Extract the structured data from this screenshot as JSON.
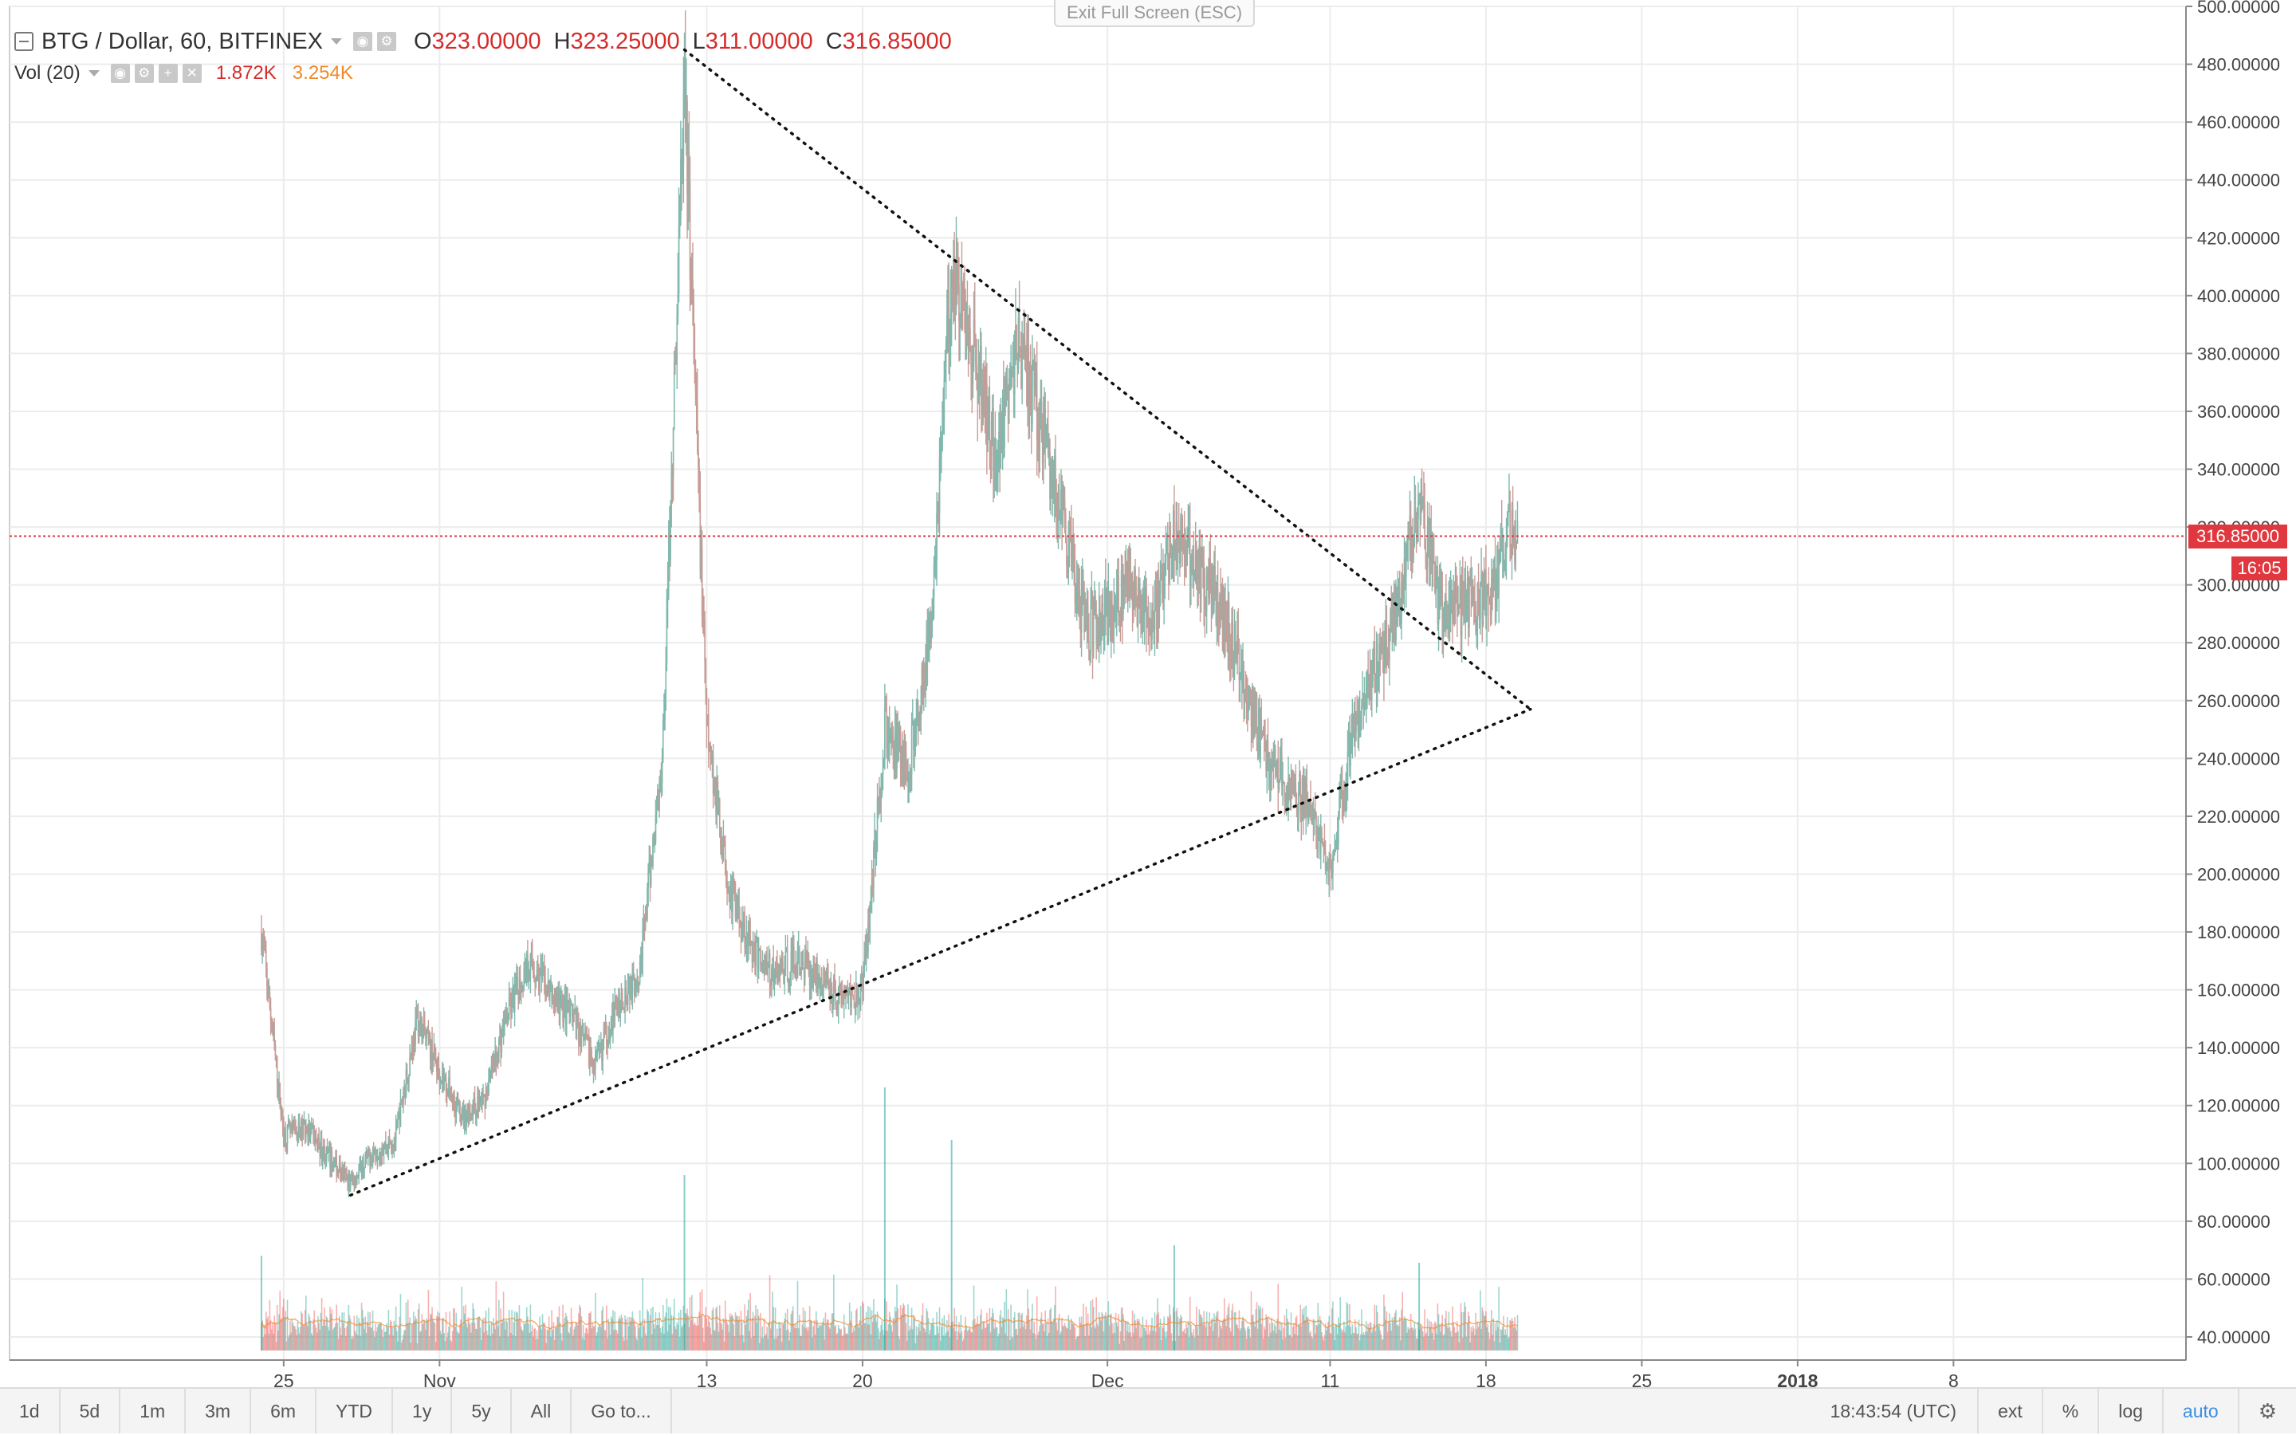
{
  "legend": {
    "symbol": "BTG / Dollar, 60, BITFINEX",
    "open_key": "O",
    "open": "323.00000",
    "high_key": "H",
    "high": "323.25000",
    "low_key": "L",
    "low": "311.00000",
    "close_key": "C",
    "close": "316.85000"
  },
  "volume_legend": {
    "label": "Vol (20)",
    "value": "1.872K",
    "ma": "3.254K"
  },
  "exit_fullscreen": "Exit Full Screen (ESC)",
  "price_badge": "316.85000",
  "countdown_badge": "16:05",
  "toolbar": {
    "ranges": [
      "1d",
      "5d",
      "1m",
      "3m",
      "6m",
      "YTD",
      "1y",
      "5y",
      "All"
    ],
    "goto": "Go to...",
    "clock": "18:43:54 (UTC)",
    "ext": "ext",
    "percent": "%",
    "log": "log",
    "auto": "auto"
  },
  "colors": {
    "up": "#26a69a",
    "down": "#ef5350",
    "last_price": "#e0383e",
    "volume_ma": "#f08a28"
  },
  "chart_data": {
    "type": "candlestick",
    "title": "BTG / Dollar, 60, BITFINEX",
    "interval": "60",
    "exchange": "BITFINEX",
    "y_axis": {
      "side": "right",
      "ylim": [
        32,
        500
      ],
      "ticks": [
        "40.00000",
        "60.00000",
        "80.00000",
        "100.00000",
        "120.00000",
        "140.00000",
        "160.00000",
        "180.00000",
        "200.00000",
        "220.00000",
        "240.00000",
        "260.00000",
        "280.00000",
        "300.00000",
        "320.00000",
        "340.00000",
        "360.00000",
        "380.00000",
        "400.00000",
        "420.00000",
        "440.00000",
        "460.00000",
        "480.00000",
        "500.00000"
      ]
    },
    "x_axis": {
      "xlim": [
        "2017-10-23",
        "2018-01-13"
      ],
      "ticks": [
        {
          "date": "2017-10-25",
          "label": "25"
        },
        {
          "date": "2017-11-01",
          "label": "Nov"
        },
        {
          "date": "2017-11-13",
          "label": "13"
        },
        {
          "date": "2017-11-20",
          "label": "20"
        },
        {
          "date": "2017-12-01",
          "label": "Dec"
        },
        {
          "date": "2017-12-11",
          "label": "11"
        },
        {
          "date": "2017-12-18",
          "label": "18"
        },
        {
          "date": "2017-12-25",
          "label": "25"
        },
        {
          "date": "2018-01-01",
          "label": "2018"
        },
        {
          "date": "2018-01-08",
          "label": "8"
        }
      ]
    },
    "price_path": [
      [
        "2017-10-24",
        180
      ],
      [
        "2017-10-25",
        110
      ],
      [
        "2017-10-26",
        112
      ],
      [
        "2017-10-27",
        102
      ],
      [
        "2017-10-28",
        93
      ],
      [
        "2017-10-29",
        104
      ],
      [
        "2017-10-30",
        108
      ],
      [
        "2017-10-31",
        150
      ],
      [
        "2017-11-01",
        132
      ],
      [
        "2017-11-02",
        116
      ],
      [
        "2017-11-03",
        122
      ],
      [
        "2017-11-04",
        150
      ],
      [
        "2017-11-05",
        170
      ],
      [
        "2017-11-06",
        158
      ],
      [
        "2017-11-07",
        150
      ],
      [
        "2017-11-08",
        134
      ],
      [
        "2017-11-09",
        155
      ],
      [
        "2017-11-10",
        168
      ],
      [
        "2017-11-11",
        240
      ],
      [
        "2017-11-12",
        475
      ],
      [
        "2017-11-13",
        250
      ],
      [
        "2017-11-14",
        195
      ],
      [
        "2017-11-15",
        175
      ],
      [
        "2017-11-16",
        165
      ],
      [
        "2017-11-17",
        170
      ],
      [
        "2017-11-18",
        165
      ],
      [
        "2017-11-19",
        158
      ],
      [
        "2017-11-20",
        160
      ],
      [
        "2017-11-21",
        250
      ],
      [
        "2017-11-22",
        235
      ],
      [
        "2017-11-23",
        280
      ],
      [
        "2017-11-24",
        410
      ],
      [
        "2017-11-25",
        380
      ],
      [
        "2017-11-26",
        345
      ],
      [
        "2017-11-27",
        385
      ],
      [
        "2017-11-28",
        355
      ],
      [
        "2017-11-29",
        320
      ],
      [
        "2017-11-30",
        285
      ],
      [
        "2017-12-01",
        290
      ],
      [
        "2017-12-02",
        300
      ],
      [
        "2017-12-03",
        285
      ],
      [
        "2017-12-04",
        320
      ],
      [
        "2017-12-05",
        305
      ],
      [
        "2017-12-06",
        295
      ],
      [
        "2017-12-07",
        270
      ],
      [
        "2017-12-08",
        245
      ],
      [
        "2017-12-09",
        230
      ],
      [
        "2017-12-10",
        225
      ],
      [
        "2017-12-11",
        200
      ],
      [
        "2017-12-12",
        250
      ],
      [
        "2017-12-13",
        270
      ],
      [
        "2017-12-14",
        290
      ],
      [
        "2017-12-15",
        330
      ],
      [
        "2017-12-16",
        290
      ],
      [
        "2017-12-17",
        292
      ],
      [
        "2017-12-18",
        295
      ],
      [
        "2017-12-19",
        317
      ]
    ],
    "volume_spikes": [
      [
        "2017-10-24",
        54
      ],
      [
        "2017-11-12",
        100
      ],
      [
        "2017-11-21",
        150
      ],
      [
        "2017-11-24",
        120
      ],
      [
        "2017-12-04",
        60
      ],
      [
        "2017-12-15",
        50
      ]
    ],
    "trendlines": [
      {
        "style": "dotted",
        "from": [
          "2017-11-12",
          485
        ],
        "to": [
          "2017-12-20",
          257
        ]
      },
      {
        "style": "dotted",
        "from": [
          "2017-10-28",
          89
        ],
        "to": [
          "2017-12-20",
          257
        ]
      }
    ],
    "last_price": 316.85,
    "last_price_line": {
      "style": "dotted",
      "color": "#e0383e"
    }
  }
}
